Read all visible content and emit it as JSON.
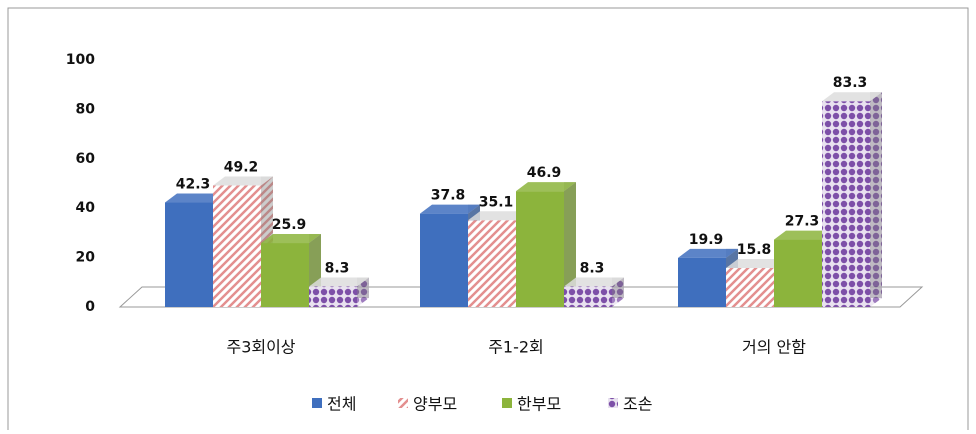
{
  "chart_data": {
    "type": "bar3d",
    "categories": [
      "주3회이상",
      "주1-2회",
      "거의 안함"
    ],
    "series": [
      {
        "name": "전체",
        "color": "#3f6fbe",
        "values": [
          42.3,
          37.8,
          19.9
        ]
      },
      {
        "name": "양부모",
        "color": "#e38f8f",
        "values": [
          49.2,
          35.1,
          15.8
        ]
      },
      {
        "name": "한부모",
        "color": "#8cb43c",
        "values": [
          25.9,
          46.9,
          27.3
        ]
      },
      {
        "name": "조손",
        "color": "#7d50a8",
        "values": [
          8.3,
          8.3,
          83.3
        ]
      }
    ],
    "ylim": [
      0,
      100
    ],
    "yticks": [
      0,
      20,
      40,
      60,
      80,
      100
    ],
    "legend": "bottom"
  }
}
